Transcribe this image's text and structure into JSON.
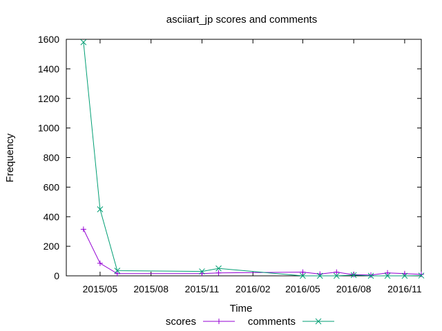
{
  "chart_data": {
    "type": "line",
    "title": "asciiart_jp scores and comments",
    "xlabel": "Time",
    "ylabel": "Frequency",
    "ylim": [
      0,
      1600
    ],
    "yticks": [
      0,
      200,
      400,
      600,
      800,
      1000,
      1200,
      1400,
      1600
    ],
    "xlim": [
      "2015-03-01",
      "2016-12-01"
    ],
    "xticks": [
      {
        "date": "2015-05-01",
        "label": "2015/05"
      },
      {
        "date": "2015-08-01",
        "label": "2015/08"
      },
      {
        "date": "2015-11-01",
        "label": "2015/11"
      },
      {
        "date": "2016-02-01",
        "label": "2016/02"
      },
      {
        "date": "2016-05-01",
        "label": "2016/05"
      },
      {
        "date": "2016-08-01",
        "label": "2016/08"
      },
      {
        "date": "2016-11-01",
        "label": "2016/11"
      }
    ],
    "grid": false,
    "legend_position": "bottom",
    "series": [
      {
        "name": "scores",
        "color": "#9400d3",
        "marker": "plus",
        "x": [
          "2015-04-01",
          "2015-05-01",
          "2015-06-01",
          "2015-11-01",
          "2015-12-01",
          "2016-05-01",
          "2016-06-01",
          "2016-07-01",
          "2016-08-01",
          "2016-09-01",
          "2016-10-01",
          "2016-11-01",
          "2016-12-01"
        ],
        "y": [
          315,
          85,
          15,
          15,
          20,
          25,
          12,
          25,
          8,
          5,
          20,
          15,
          10
        ]
      },
      {
        "name": "comments",
        "color": "#009e73",
        "marker": "cross",
        "x": [
          "2015-04-01",
          "2015-05-01",
          "2015-06-01",
          "2015-11-01",
          "2015-12-01",
          "2016-05-01",
          "2016-06-01",
          "2016-07-01",
          "2016-08-01",
          "2016-09-01",
          "2016-10-01",
          "2016-11-01",
          "2016-12-01"
        ],
        "y": [
          1580,
          450,
          35,
          30,
          50,
          0,
          0,
          0,
          5,
          0,
          0,
          0,
          2
        ]
      }
    ]
  }
}
